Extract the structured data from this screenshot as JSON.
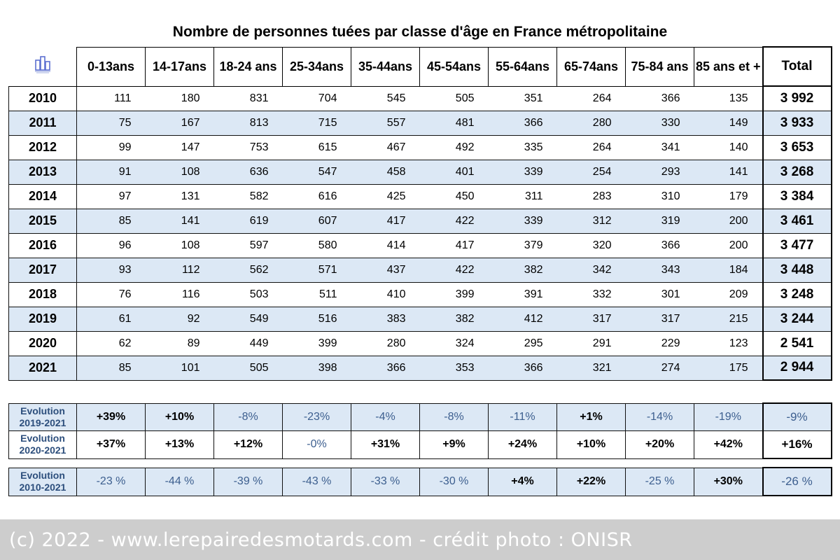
{
  "title": "Nombre de personnes tuées par classe d'âge en France métropolitaine",
  "logo_icon": "building-chart-icon",
  "headers": [
    "0-13ans",
    "14-17ans",
    "18-24 ans",
    "25-34ans",
    "35-44ans",
    "45-54ans",
    "55-64ans",
    "65-74ans",
    "75-84 ans",
    "85 ans et +",
    "Total"
  ],
  "rows": [
    {
      "year": "2010",
      "values": [
        "111",
        "180",
        "831",
        "704",
        "545",
        "505",
        "351",
        "264",
        "366",
        "135"
      ],
      "total": "3 992",
      "shaded": false
    },
    {
      "year": "2011",
      "values": [
        "75",
        "167",
        "813",
        "715",
        "557",
        "481",
        "366",
        "280",
        "330",
        "149"
      ],
      "total": "3 933",
      "shaded": true
    },
    {
      "year": "2012",
      "values": [
        "99",
        "147",
        "753",
        "615",
        "467",
        "492",
        "335",
        "264",
        "341",
        "140"
      ],
      "total": "3 653",
      "shaded": false
    },
    {
      "year": "2013",
      "values": [
        "91",
        "108",
        "636",
        "547",
        "458",
        "401",
        "339",
        "254",
        "293",
        "141"
      ],
      "total": "3 268",
      "shaded": true
    },
    {
      "year": "2014",
      "values": [
        "97",
        "131",
        "582",
        "616",
        "425",
        "450",
        "311",
        "283",
        "310",
        "179"
      ],
      "total": "3 384",
      "shaded": false
    },
    {
      "year": "2015",
      "values": [
        "85",
        "141",
        "619",
        "607",
        "417",
        "422",
        "339",
        "312",
        "319",
        "200"
      ],
      "total": "3 461",
      "shaded": true
    },
    {
      "year": "2016",
      "values": [
        "96",
        "108",
        "597",
        "580",
        "414",
        "417",
        "379",
        "320",
        "366",
        "200"
      ],
      "total": "3 477",
      "shaded": false
    },
    {
      "year": "2017",
      "values": [
        "93",
        "112",
        "562",
        "571",
        "437",
        "422",
        "382",
        "342",
        "343",
        "184"
      ],
      "total": "3 448",
      "shaded": true
    },
    {
      "year": "2018",
      "values": [
        "76",
        "116",
        "503",
        "511",
        "410",
        "399",
        "391",
        "332",
        "301",
        "209"
      ],
      "total": "3 248",
      "shaded": false
    },
    {
      "year": "2019",
      "values": [
        "61",
        "92",
        "549",
        "516",
        "383",
        "382",
        "412",
        "317",
        "317",
        "215"
      ],
      "total": "3 244",
      "shaded": true
    },
    {
      "year": "2020",
      "values": [
        "62",
        "89",
        "449",
        "399",
        "280",
        "324",
        "295",
        "291",
        "229",
        "123"
      ],
      "total": "2 541",
      "shaded": false
    },
    {
      "year": "2021",
      "values": [
        "85",
        "101",
        "505",
        "398",
        "366",
        "353",
        "366",
        "321",
        "274",
        "175"
      ],
      "total": "2 944",
      "shaded": true
    }
  ],
  "evolution_a": [
    {
      "label_line1": "Evolution",
      "label_line2": "2019-2021",
      "values": [
        "+39%",
        "+10%",
        "-8%",
        "-23%",
        "-4%",
        "-8%",
        "-11%",
        "+1%",
        "-14%",
        "-19%"
      ],
      "total": "-9%",
      "shaded": true
    },
    {
      "label_line1": "Evolution",
      "label_line2": "2020-2021",
      "values": [
        "+37%",
        "+13%",
        "+12%",
        "-0%",
        "+31%",
        "+9%",
        "+24%",
        "+10%",
        "+20%",
        "+42%"
      ],
      "total": "+16%",
      "shaded": false
    }
  ],
  "evolution_b": [
    {
      "label_line1": "Evolution",
      "label_line2": "2010-2021",
      "values": [
        "-23 %",
        "-44 %",
        "-39 %",
        "-43 %",
        "-33 %",
        "-30 %",
        "+4%",
        "+22%",
        "-25 %",
        "+30%"
      ],
      "total": "-26 %",
      "shaded": true
    }
  ],
  "footer": "(c) 2022 - www.lerepairedesmotards.com - crédit photo : ONISR"
}
